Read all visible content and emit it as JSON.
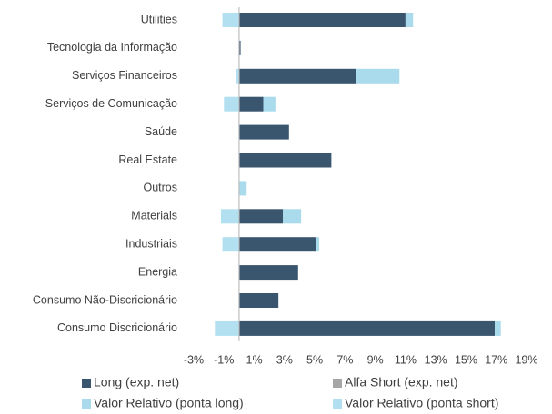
{
  "chart_data": {
    "type": "hbar_stacked",
    "categories": [
      "Utilities",
      "Tecnologia da Informação",
      "Serviços Financeiros",
      "Serviços de Comunicação",
      "Saúde",
      "Real Estate",
      "Outros",
      "Materials",
      "Industriais",
      "Energia",
      "Consumo Não-Discricionário",
      "Consumo Discricionário"
    ],
    "series": [
      {
        "name": "Long (exp. net)",
        "color": "#3a566f",
        "values": [
          11.0,
          0.1,
          7.7,
          1.6,
          3.3,
          6.1,
          0,
          2.9,
          5.1,
          3.9,
          2.6,
          16.9
        ]
      },
      {
        "name": "Alfa Short (exp. net)",
        "color": "#a6a6a6",
        "values": [
          0,
          0,
          0,
          0,
          0,
          0,
          0,
          0,
          0,
          0,
          0,
          0
        ]
      },
      {
        "name": "Valor Relativo (ponta long)",
        "color": "#a9dbec",
        "values": [
          0.5,
          0,
          2.9,
          0.8,
          0,
          0,
          0.5,
          1.2,
          0.2,
          0,
          0,
          0.4
        ]
      },
      {
        "name": "Valor Relativo (ponta short)",
        "color": "#b2e0f0",
        "values": [
          -1.1,
          0,
          -0.2,
          -1.0,
          0,
          0,
          0,
          -1.2,
          -1.1,
          0,
          0,
          -1.6
        ]
      }
    ],
    "xlim": [
      -3,
      19
    ],
    "xticks": [
      {
        "value": -3,
        "label": "-3%"
      },
      {
        "value": -1,
        "label": "-1%"
      },
      {
        "value": 1,
        "label": "1%"
      },
      {
        "value": 3,
        "label": "3%"
      },
      {
        "value": 5,
        "label": "5%"
      },
      {
        "value": 7,
        "label": "7%"
      },
      {
        "value": 9,
        "label": "9%"
      },
      {
        "value": 11,
        "label": "11%"
      },
      {
        "value": 13,
        "label": "13%"
      },
      {
        "value": 15,
        "label": "15%"
      },
      {
        "value": 17,
        "label": "17%"
      },
      {
        "value": 19,
        "label": "19%"
      }
    ],
    "legend": "bottom"
  }
}
